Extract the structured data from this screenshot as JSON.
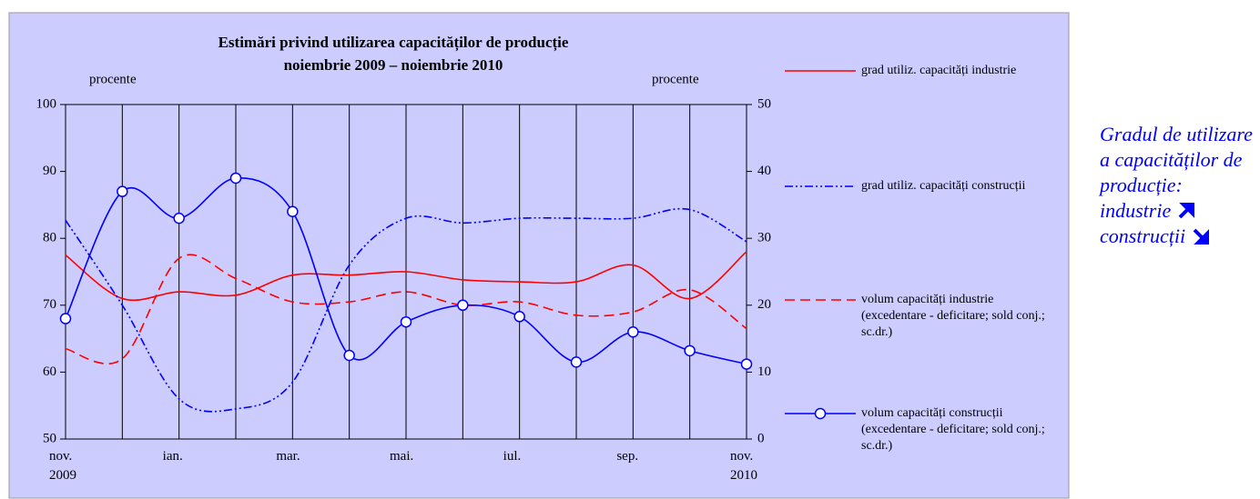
{
  "chart_data": {
    "type": "line",
    "title": "Estimări privind utilizarea capacităților de producție",
    "subtitle": "noiembrie 2009 – noiembrie 2010",
    "ylabel": "procente",
    "y2label": "procente",
    "categories": [
      "nov. 2009",
      null,
      "ian.",
      null,
      "mar.",
      null,
      "mai.",
      null,
      "iul.",
      null,
      "sep.",
      null,
      "nov. 2010"
    ],
    "ylim": [
      50,
      100
    ],
    "yticks": [
      50,
      60,
      70,
      80,
      90,
      100
    ],
    "y2lim": [
      0,
      50
    ],
    "y2ticks": [
      0,
      10,
      20,
      30,
      40,
      50
    ],
    "grid": "x",
    "legend": "right",
    "series": [
      {
        "name": "grad utiliz. capacități industrie",
        "color": "#ff0000",
        "style": "solid",
        "values": [
          77.5,
          71,
          72,
          71.5,
          74.5,
          74.5,
          75,
          73.8,
          73.5,
          73.5,
          76,
          71,
          78
        ]
      },
      {
        "name": "grad utiliz. capacități construcții",
        "color": "#0000ff",
        "style": "dash-dot",
        "values": [
          82.7,
          70,
          56,
          54.5,
          58.5,
          76,
          83,
          82.3,
          83,
          83,
          83,
          84.3,
          79.5
        ]
      },
      {
        "name": "volum capacități industrie (excedentare - deficitare; sold conj.; sc.dr.)",
        "color": "#ff0000",
        "style": "dash",
        "axis": "y2",
        "values": [
          13.5,
          12,
          27,
          24,
          20.5,
          20.5,
          22,
          20,
          20.5,
          18.5,
          19,
          22.3,
          16.5
        ]
      },
      {
        "name": "volum capacități construcții (excedentare - deficitare; sold conj.; sc.dr.)",
        "color": "#0000ff",
        "style": "solid",
        "marker": "circle",
        "axis": "y2",
        "values": [
          18,
          37,
          33,
          39,
          34,
          12.5,
          17.5,
          20,
          18.3,
          11.5,
          16,
          13.2,
          11.2
        ]
      }
    ]
  },
  "side_note": {
    "text": "Gradul de utilizare a capacităților de producție:",
    "items": [
      "industrie",
      "construcții"
    ]
  }
}
